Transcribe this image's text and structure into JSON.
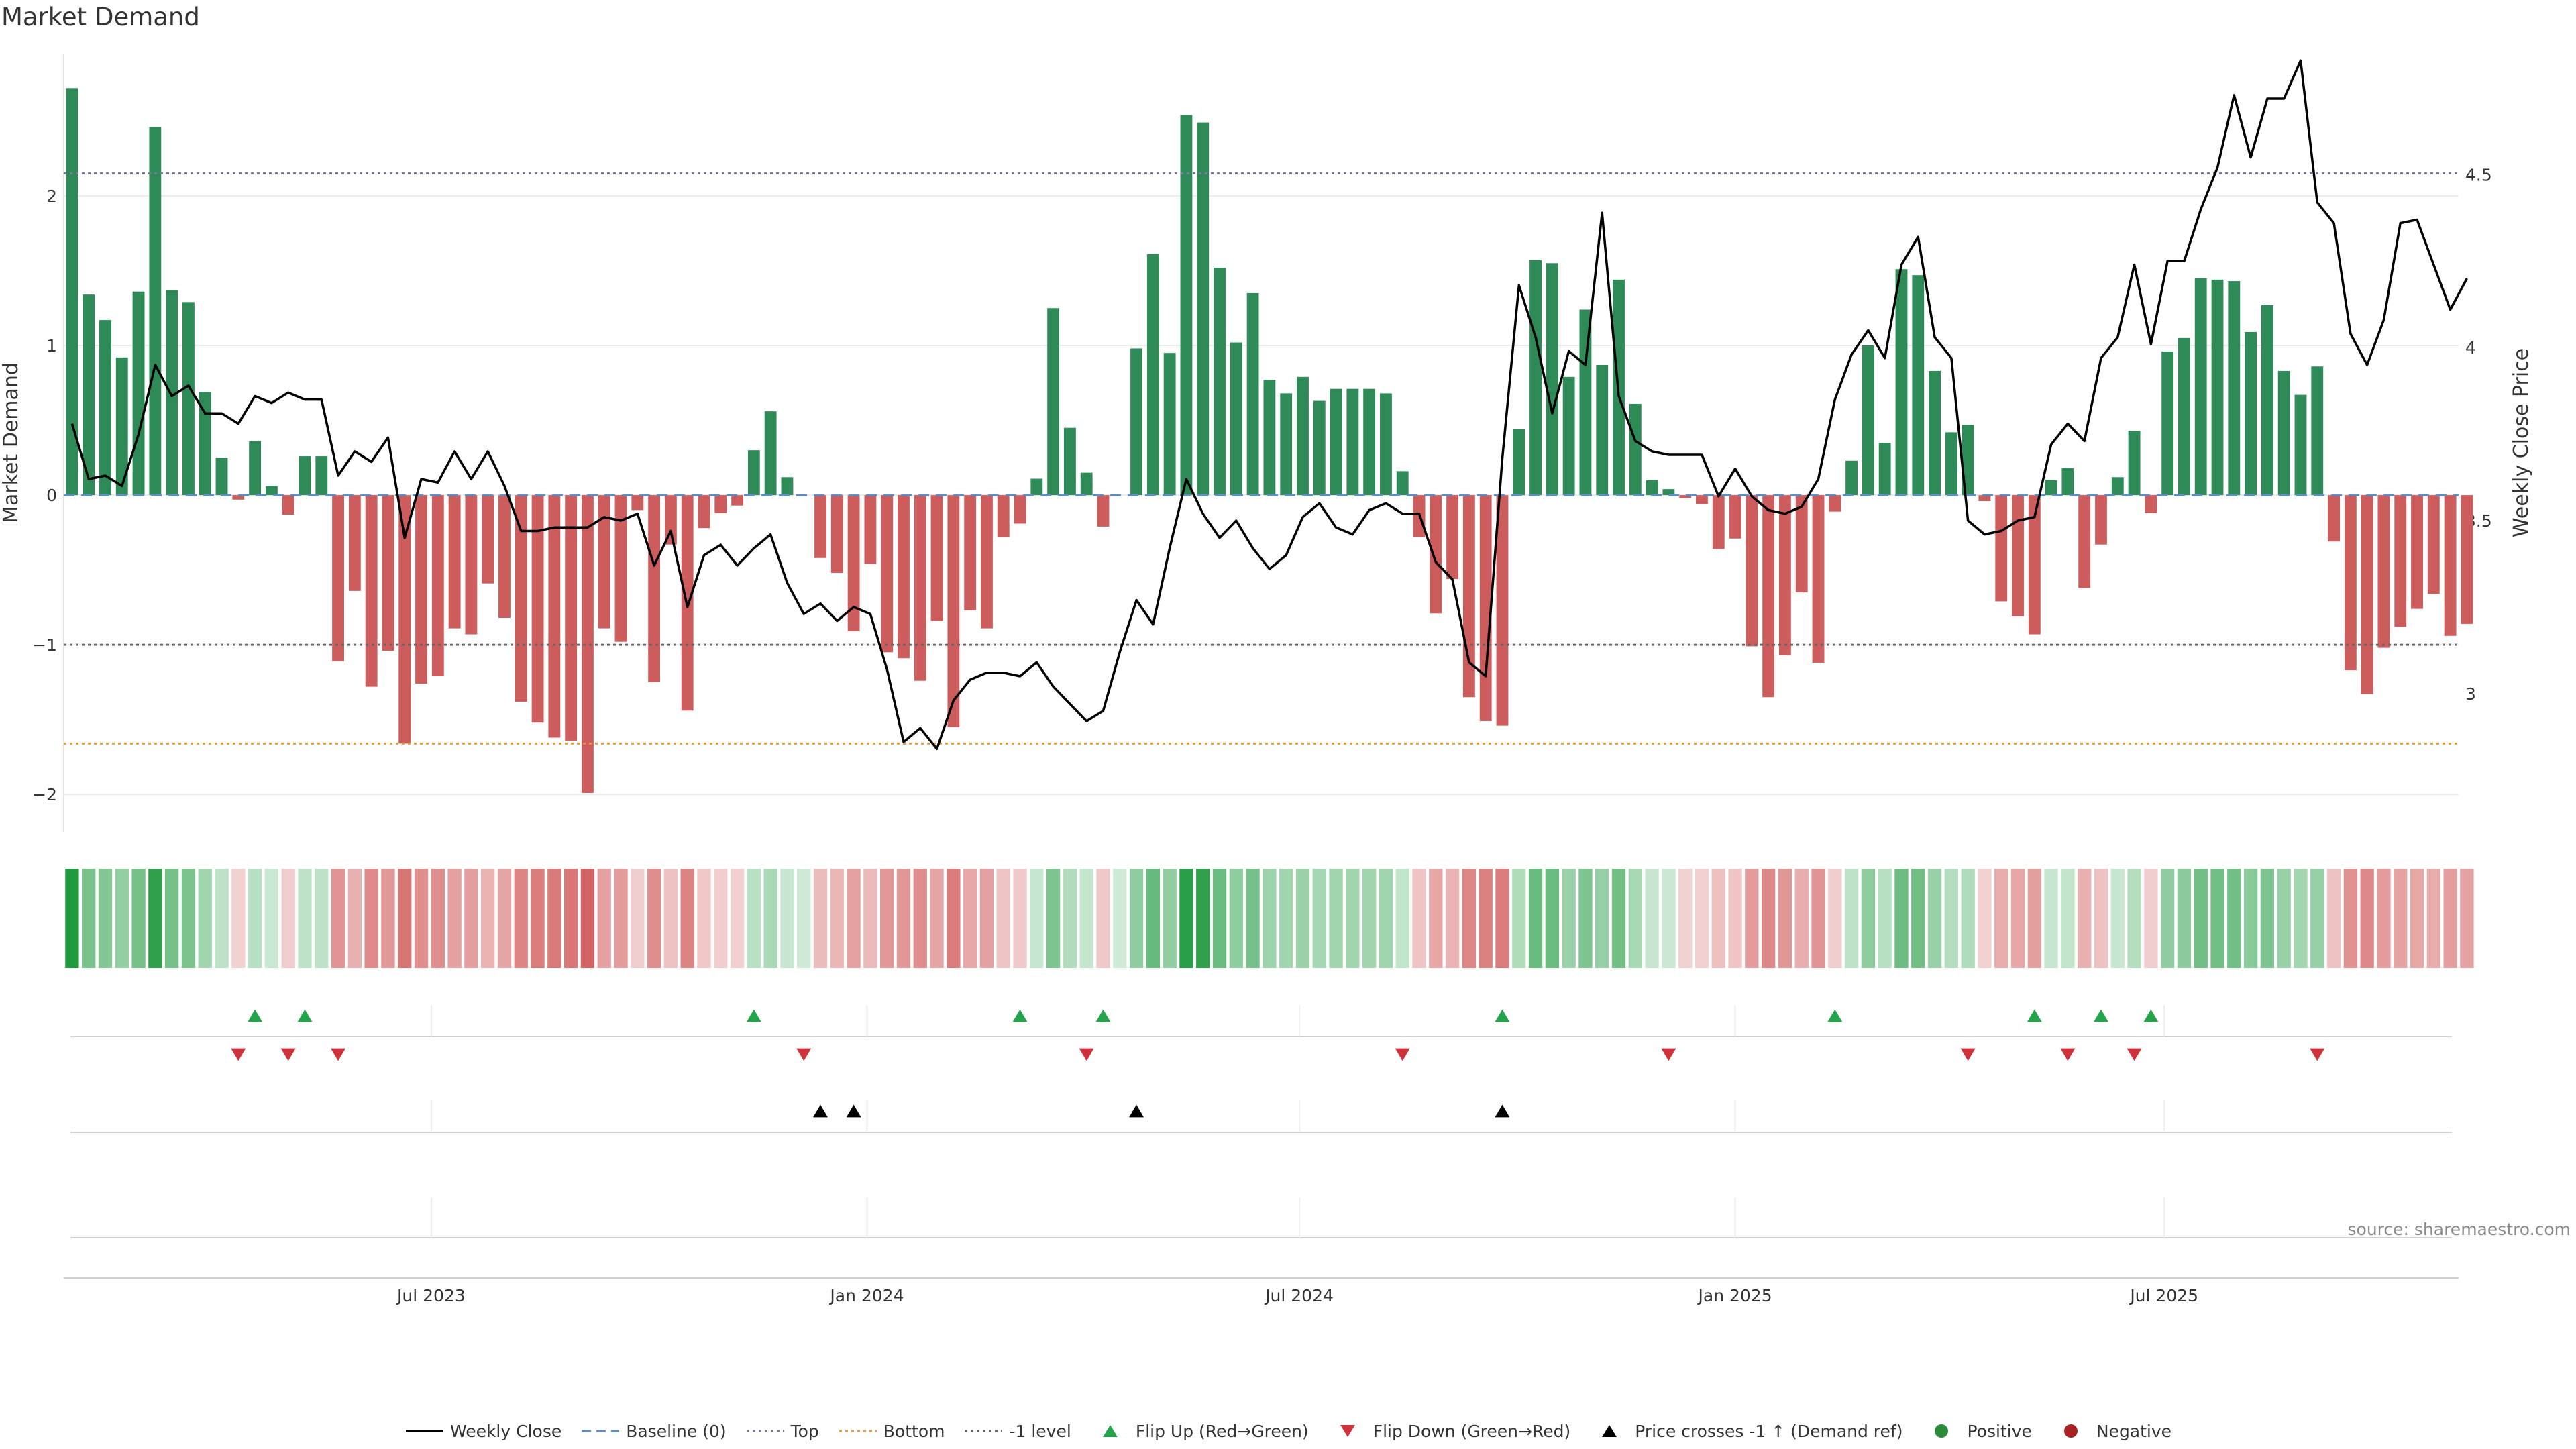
{
  "chart_data": {
    "type": "bar",
    "title": "Market Demand",
    "ylabel_left": "Market Demand",
    "ylabel_right": "Weekly Close Price",
    "ylim_left": [
      -2.25,
      2.95
    ],
    "ylim_right": [
      2.6,
      4.85
    ],
    "yticks_left": [
      {
        "v": 2,
        "label": "2"
      },
      {
        "v": 1,
        "label": "1"
      },
      {
        "v": 0,
        "label": "0"
      },
      {
        "v": -1,
        "label": "−1"
      },
      {
        "v": -2,
        "label": "−2"
      }
    ],
    "yticks_right": [
      {
        "v": 4.5,
        "label": "4.5"
      },
      {
        "v": 4,
        "label": "4"
      },
      {
        "v": 3.5,
        "label": "3.5"
      },
      {
        "v": 3,
        "label": "3"
      }
    ],
    "xlim": [
      0,
      144
    ],
    "xticks": [
      {
        "x": 22.1,
        "label": "Jul 2023"
      },
      {
        "x": 48.3,
        "label": "Jan 2024"
      },
      {
        "x": 74.3,
        "label": "Jul 2024"
      },
      {
        "x": 100.5,
        "label": "Jan 2025"
      },
      {
        "x": 126.3,
        "label": "Jul 2025"
      }
    ],
    "reference_lines": {
      "top": 2.15,
      "bottom": -1.66,
      "minus_one": -1,
      "baseline": 0
    },
    "demand": [
      2.72,
      1.34,
      1.17,
      0.92,
      1.36,
      2.46,
      1.37,
      1.29,
      0.69,
      0.25,
      -0.03,
      0.36,
      0.06,
      -0.13,
      0.26,
      0.26,
      -1.11,
      -0.64,
      -1.28,
      -1.04,
      -1.66,
      -1.26,
      -1.21,
      -0.89,
      -0.93,
      -0.59,
      -0.82,
      -1.38,
      -1.52,
      -1.62,
      -1.64,
      -1.99,
      -0.89,
      -0.98,
      -0.1,
      -1.25,
      -0.33,
      -1.44,
      -0.22,
      -0.12,
      -0.07,
      0.3,
      0.56,
      0.12,
      0.0,
      -0.42,
      -0.52,
      -0.91,
      -0.46,
      -1.05,
      -1.09,
      -1.24,
      -0.84,
      -1.55,
      -0.77,
      -0.89,
      -0.28,
      -0.19,
      0.11,
      1.25,
      0.45,
      0.15,
      -0.21,
      0.0,
      0.98,
      1.61,
      0.95,
      2.54,
      2.49,
      1.52,
      1.02,
      1.35,
      0.77,
      0.68,
      0.79,
      0.63,
      0.71,
      0.71,
      0.71,
      0.68,
      0.16,
      -0.28,
      -0.79,
      -0.56,
      -1.35,
      -1.51,
      -1.54,
      0.44,
      1.57,
      1.55,
      0.79,
      1.24,
      0.87,
      1.44,
      0.61,
      0.1,
      0.04,
      -0.02,
      -0.06,
      -0.36,
      -0.29,
      -1.01,
      -1.35,
      -1.07,
      -0.65,
      -1.12,
      -0.11,
      0.23,
      1.0,
      0.35,
      1.51,
      1.47,
      0.83,
      0.42,
      0.47,
      -0.04,
      -0.71,
      -0.81,
      -0.93,
      0.1,
      0.18,
      -0.62,
      -0.33,
      0.12,
      0.43,
      -0.12,
      0.96,
      1.05,
      1.45,
      1.44,
      1.43,
      1.09,
      1.27,
      0.83,
      0.67,
      0.86,
      -0.31,
      -1.17,
      -1.33,
      -1.02,
      -0.88,
      -0.76,
      -0.66,
      -0.94,
      -0.86
    ],
    "close": [
      3.78,
      3.62,
      3.63,
      3.6,
      3.75,
      3.95,
      3.86,
      3.89,
      3.81,
      3.81,
      3.78,
      3.86,
      3.84,
      3.87,
      3.85,
      3.85,
      3.63,
      3.7,
      3.67,
      3.74,
      3.45,
      3.62,
      3.61,
      3.7,
      3.62,
      3.7,
      3.6,
      3.47,
      3.47,
      3.48,
      3.48,
      3.48,
      3.51,
      3.5,
      3.52,
      3.37,
      3.47,
      3.25,
      3.4,
      3.43,
      3.37,
      3.42,
      3.46,
      3.32,
      3.23,
      3.26,
      3.21,
      3.25,
      3.23,
      3.07,
      2.86,
      2.9,
      2.84,
      2.98,
      3.04,
      3.06,
      3.06,
      3.05,
      3.09,
      3.02,
      2.97,
      2.92,
      2.95,
      3.12,
      3.27,
      3.2,
      3.42,
      3.62,
      3.52,
      3.45,
      3.5,
      3.42,
      3.36,
      3.4,
      3.51,
      3.55,
      3.48,
      3.46,
      3.53,
      3.55,
      3.52,
      3.52,
      3.38,
      3.33,
      3.09,
      3.05,
      3.68,
      4.18,
      4.03,
      3.81,
      3.99,
      3.95,
      4.39,
      3.86,
      3.73,
      3.7,
      3.69,
      3.69,
      3.69,
      3.57,
      3.65,
      3.57,
      3.53,
      3.52,
      3.54,
      3.62,
      3.85,
      3.98,
      4.05,
      3.97,
      4.24,
      4.32,
      4.03,
      3.97,
      3.5,
      3.46,
      3.47,
      3.5,
      3.51,
      3.72,
      3.78,
      3.73,
      3.97,
      4.03,
      4.24,
      4.01,
      4.25,
      4.25,
      4.4,
      4.52,
      4.73,
      4.55,
      4.72,
      4.72,
      4.83,
      4.42,
      4.36,
      4.04,
      3.95,
      4.08,
      4.36,
      4.37,
      4.24,
      4.11,
      4.2
    ],
    "flip_up_x": [
      11,
      14,
      41,
      57,
      62,
      86,
      106,
      118,
      122,
      125
    ],
    "flip_down_x": [
      10,
      13,
      16,
      44,
      61,
      80,
      96,
      114,
      120,
      124,
      135
    ],
    "price_cross_x": [
      45,
      47,
      64,
      86
    ],
    "legend": [
      {
        "kind": "line",
        "color": "#000000",
        "label": "Weekly Close"
      },
      {
        "kind": "dashed",
        "color": "#5b8fc7",
        "label": "Baseline (0)"
      },
      {
        "kind": "dotted",
        "color": "#7a7a9e",
        "label": "Top"
      },
      {
        "kind": "dotted",
        "color": "#e69a3c",
        "label": "Bottom"
      },
      {
        "kind": "dotted",
        "color": "#666666",
        "label": "-1 level"
      },
      {
        "kind": "tri-up",
        "color": "#23a34a",
        "label": "Flip Up (Red→Green)"
      },
      {
        "kind": "tri-down",
        "color": "#d0323c",
        "label": "Flip Down (Green→Red)"
      },
      {
        "kind": "tri-up",
        "color": "#000000",
        "label": "Price crosses -1 ↑ (Demand ref)"
      },
      {
        "kind": "dot",
        "color": "#2a8a3a",
        "label": "Positive"
      },
      {
        "kind": "dot",
        "color": "#a82222",
        "label": "Negative"
      }
    ]
  },
  "colors": {
    "positive": "#2e8b57",
    "negative": "#cd5c5c",
    "strip_pos": "#1f9a3f",
    "strip_neg": "#c83a3a",
    "top": "#7a7a9e",
    "bottom": "#e69a3c",
    "minus_one": "#666666",
    "baseline": "#5b8fc7"
  },
  "source": "source: sharemaestro.com"
}
